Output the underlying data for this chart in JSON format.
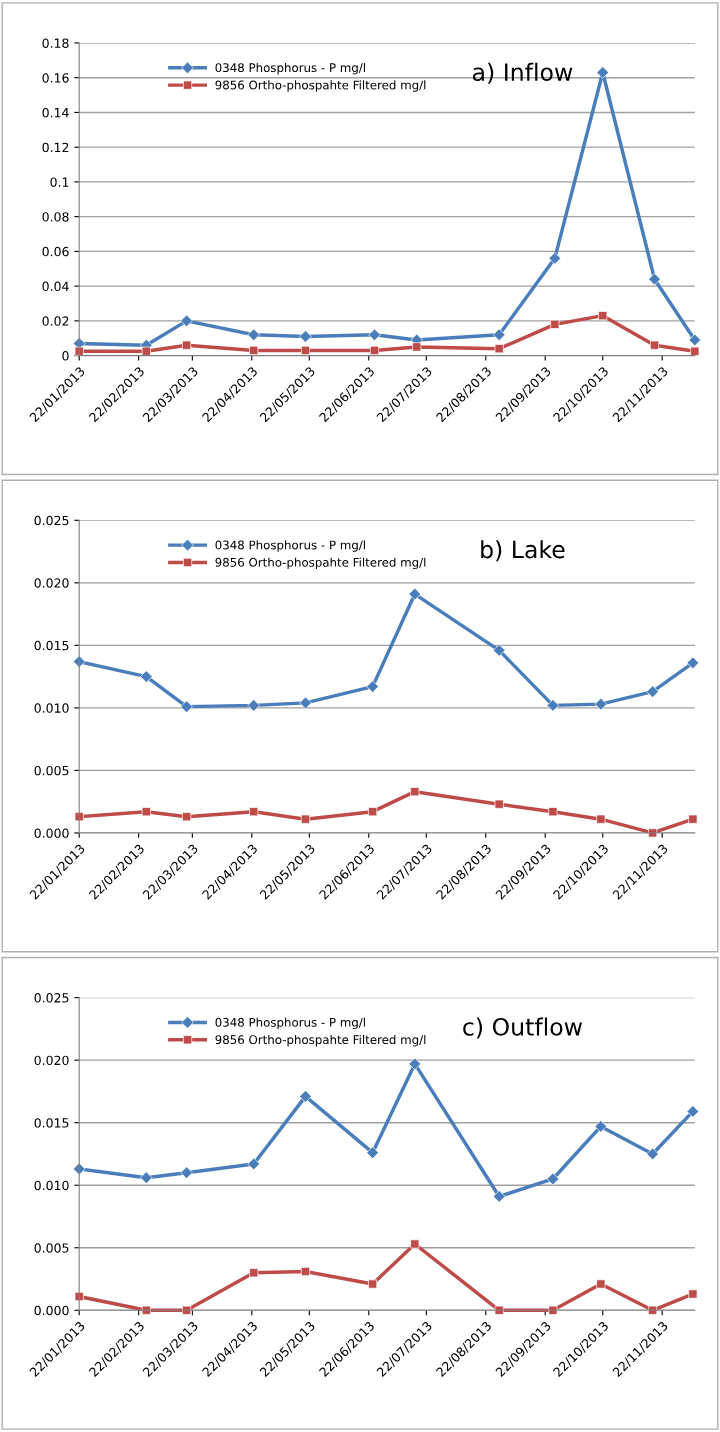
{
  "chart_data": [
    {
      "type": "line",
      "title": "a) Inflow",
      "x": [
        "2013-01-22",
        "2013-02-26",
        "2013-03-19",
        "2013-04-23",
        "2013-05-20",
        "2013-06-25",
        "2013-07-17",
        "2013-08-29",
        "2013-09-27",
        "2013-10-22",
        "2013-11-18",
        "2013-12-09"
      ],
      "series": [
        {
          "name": "0348 Phosphorus - P mg/l",
          "color": "#4a7ebb",
          "marker": "diamond",
          "values": [
            0.007,
            0.006,
            0.02,
            0.012,
            0.011,
            0.012,
            0.009,
            0.012,
            0.056,
            0.163,
            0.044,
            0.009
          ]
        },
        {
          "name": "9856 Ortho-phospahte Filtered mg/l",
          "color": "#be4b48",
          "marker": "square",
          "values": [
            0.0025,
            0.0025,
            0.006,
            0.003,
            0.003,
            0.003,
            0.005,
            0.004,
            0.018,
            0.023,
            0.006,
            0.0025
          ]
        }
      ],
      "xlim": [
        "2013-01-22",
        "2013-12-09"
      ],
      "xticks": [
        {
          "value": "2013-01-22",
          "label": "22/01/2013"
        },
        {
          "value": "2013-02-22",
          "label": "22/02/2013"
        },
        {
          "value": "2013-03-22",
          "label": "22/03/2013"
        },
        {
          "value": "2013-04-22",
          "label": "22/04/2013"
        },
        {
          "value": "2013-05-22",
          "label": "22/05/2013"
        },
        {
          "value": "2013-06-22",
          "label": "22/06/2013"
        },
        {
          "value": "2013-07-22",
          "label": "22/07/2013"
        },
        {
          "value": "2013-08-22",
          "label": "22/08/2013"
        },
        {
          "value": "2013-09-22",
          "label": "22/09/2013"
        },
        {
          "value": "2013-10-22",
          "label": "22/10/2013"
        },
        {
          "value": "2013-11-22",
          "label": "22/11/2013"
        }
      ],
      "ylim": [
        0,
        0.18
      ],
      "yticks": [
        0,
        0.02,
        0.04,
        0.06,
        0.08,
        0.1,
        0.12,
        0.14,
        0.16,
        0.18
      ],
      "grid": "y",
      "legend": "top left"
    },
    {
      "type": "line",
      "title": "b) Lake",
      "x": [
        "2013-01-22",
        "2013-02-26",
        "2013-03-19",
        "2013-04-23",
        "2013-05-20",
        "2013-06-24",
        "2013-07-16",
        "2013-08-29",
        "2013-09-26",
        "2013-10-21",
        "2013-11-17",
        "2013-12-08"
      ],
      "series": [
        {
          "name": "0348 Phosphorus - P mg/l",
          "color": "#4a7ebb",
          "marker": "diamond",
          "values": [
            0.0137,
            0.0125,
            0.0101,
            0.0102,
            0.0104,
            0.0117,
            0.0191,
            0.0146,
            0.0102,
            0.0103,
            0.0113,
            0.0136
          ]
        },
        {
          "name": "9856 Ortho-phospahte Filtered mg/l",
          "color": "#be4b48",
          "marker": "square",
          "values": [
            0.0013,
            0.0017,
            0.0013,
            0.0017,
            0.0011,
            0.0017,
            0.0033,
            0.0023,
            0.0017,
            0.0011,
            0.0,
            0.0011
          ]
        }
      ],
      "xlim": [
        "2013-01-22",
        "2013-12-09"
      ],
      "xticks": [
        {
          "value": "2013-01-22",
          "label": "22/01/2013"
        },
        {
          "value": "2013-02-22",
          "label": "22/02/2013"
        },
        {
          "value": "2013-03-22",
          "label": "22/03/2013"
        },
        {
          "value": "2013-04-22",
          "label": "22/04/2013"
        },
        {
          "value": "2013-05-22",
          "label": "22/05/2013"
        },
        {
          "value": "2013-06-22",
          "label": "22/06/2013"
        },
        {
          "value": "2013-07-22",
          "label": "22/07/2013"
        },
        {
          "value": "2013-08-22",
          "label": "22/08/2013"
        },
        {
          "value": "2013-09-22",
          "label": "22/09/2013"
        },
        {
          "value": "2013-10-22",
          "label": "22/10/2013"
        },
        {
          "value": "2013-11-22",
          "label": "22/11/2013"
        }
      ],
      "ylim": [
        0,
        0.025
      ],
      "yticks": [
        {
          "value": 0,
          "label": "0.000"
        },
        {
          "value": 0.005,
          "label": "0.005"
        },
        {
          "value": 0.01,
          "label": "0.010"
        },
        {
          "value": 0.015,
          "label": "0.015"
        },
        {
          "value": 0.02,
          "label": "0.020"
        },
        {
          "value": 0.025,
          "label": "0.025"
        }
      ],
      "grid": "y",
      "legend": "top left"
    },
    {
      "type": "line",
      "title": "c) Outflow",
      "x": [
        "2013-01-22",
        "2013-02-26",
        "2013-03-19",
        "2013-04-23",
        "2013-05-20",
        "2013-06-24",
        "2013-07-16",
        "2013-08-29",
        "2013-09-26",
        "2013-10-21",
        "2013-11-17",
        "2013-12-08"
      ],
      "series": [
        {
          "name": "0348 Phosphorus - P mg/l",
          "color": "#4a7ebb",
          "marker": "diamond",
          "values": [
            0.0113,
            0.0106,
            0.011,
            0.0117,
            0.0171,
            0.0126,
            0.0197,
            0.0091,
            0.0105,
            0.0147,
            0.0125,
            0.0159
          ]
        },
        {
          "name": "9856 Ortho-phospahte Filtered mg/l",
          "color": "#be4b48",
          "marker": "square",
          "values": [
            0.0011,
            0.0,
            0.0,
            0.003,
            0.0031,
            0.0021,
            0.0053,
            0.0,
            0.0,
            0.0021,
            0.0,
            0.0013
          ]
        }
      ],
      "xlim": [
        "2013-01-22",
        "2013-12-09"
      ],
      "xticks": [
        {
          "value": "2013-01-22",
          "label": "22/01/2013"
        },
        {
          "value": "2013-02-22",
          "label": "22/02/2013"
        },
        {
          "value": "2013-03-22",
          "label": "22/03/2013"
        },
        {
          "value": "2013-04-22",
          "label": "22/04/2013"
        },
        {
          "value": "2013-05-22",
          "label": "22/05/2013"
        },
        {
          "value": "2013-06-22",
          "label": "22/06/2013"
        },
        {
          "value": "2013-07-22",
          "label": "22/07/2013"
        },
        {
          "value": "2013-08-22",
          "label": "22/08/2013"
        },
        {
          "value": "2013-09-22",
          "label": "22/09/2013"
        },
        {
          "value": "2013-10-22",
          "label": "22/10/2013"
        },
        {
          "value": "2013-11-22",
          "label": "22/11/2013"
        }
      ],
      "ylim": [
        0,
        0.025
      ],
      "yticks": [
        {
          "value": 0,
          "label": "0.000"
        },
        {
          "value": 0.005,
          "label": "0.005"
        },
        {
          "value": 0.01,
          "label": "0.010"
        },
        {
          "value": 0.015,
          "label": "0.015"
        },
        {
          "value": 0.02,
          "label": "0.020"
        },
        {
          "value": 0.025,
          "label": "0.025"
        }
      ],
      "grid": "y",
      "legend": "top left"
    }
  ]
}
